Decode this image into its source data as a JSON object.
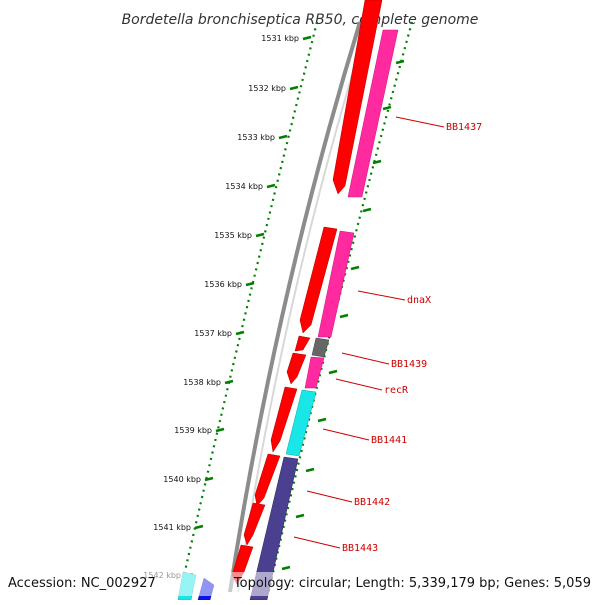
{
  "title": "Bordetella bronchiseptica RB50, complete genome",
  "footer": {
    "accession": "Accession: NC_002927",
    "summary": "Topology: circular; Length: 5,339,179 bp; Genes: 5,059"
  },
  "ticks": [
    "1531 kbp",
    "1532 kbp",
    "1533 kbp",
    "1534 kbp",
    "1535 kbp",
    "1536 kbp",
    "1537 kbp",
    "1538 kbp",
    "1539 kbp",
    "1540 kbp",
    "1541 kbp",
    "1542 kbp"
  ],
  "gene_labels": [
    "BB1437",
    "dnaX",
    "BB1439",
    "recR",
    "BB1441",
    "BB1442",
    "BB1443"
  ],
  "colors": {
    "cds": "#ff0000",
    "feature_pink": "#ff2aa0",
    "feature_cyan": "#19e6e6",
    "feature_purple": "#4b3f8f",
    "feature_gray": "#666666",
    "feature_blue": "#0a14e6",
    "label": "#cc0000",
    "gc_skew": "#007f00",
    "backbone": "#8c8c8c"
  }
}
